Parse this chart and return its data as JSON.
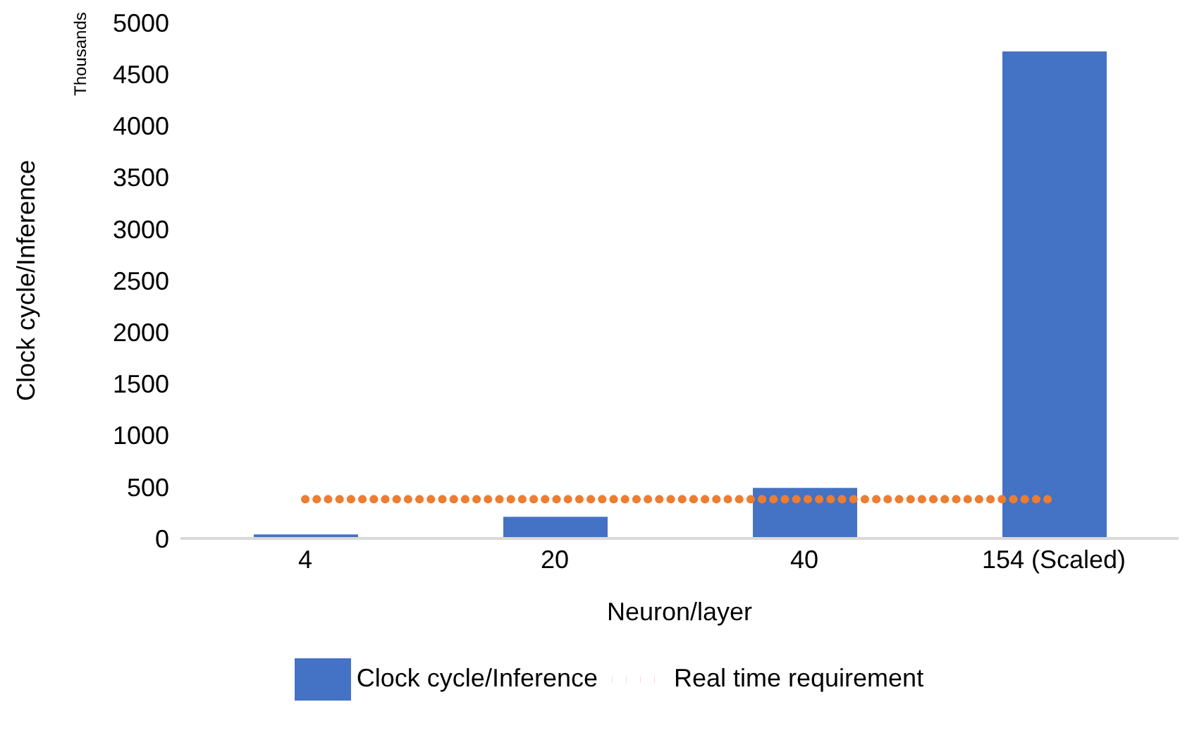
{
  "chart_data": {
    "type": "bar",
    "xlabel": "Neuron/layer",
    "ylabel": "Clock cycle/Inference",
    "annotations": [
      "Thousands"
    ],
    "categories": [
      "4",
      "20",
      "40",
      "154 (Scaled)"
    ],
    "series": [
      {
        "name": "Clock cycle/Inference",
        "color": "#4472c4",
        "values": [
          40,
          210,
          490,
          4720
        ]
      },
      {
        "name": "Real time requirement",
        "type": "line",
        "color": "#ed7d31",
        "line_style": "dotted",
        "marker": "none",
        "values": [
          380,
          380,
          380,
          380
        ]
      }
    ],
    "ylim": [
      0,
      5000
    ],
    "yticks": [
      0,
      500,
      1000,
      1500,
      2000,
      2500,
      3000,
      3500,
      4000,
      4500,
      5000
    ],
    "grid": false,
    "legend": "bottom"
  }
}
